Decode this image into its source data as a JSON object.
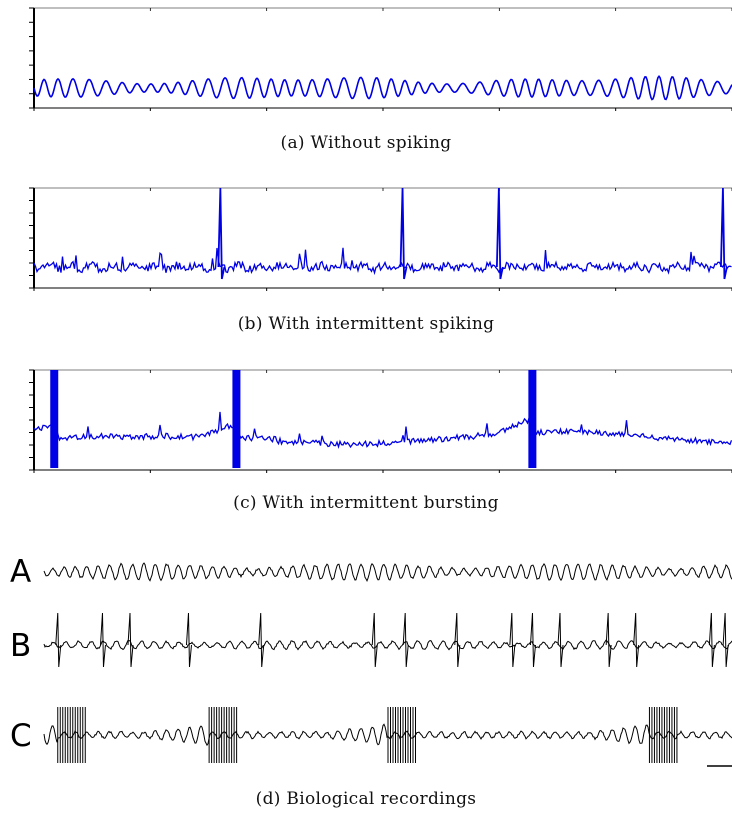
{
  "figure": {
    "captions": {
      "a": "(a) Without spiking",
      "b": "(b) With intermittent spiking",
      "c": "(c) With intermittent bursting",
      "d": "(d) Biological recordings"
    },
    "trace_labels": {
      "A": "A",
      "B": "B",
      "C": "C"
    },
    "colors": {
      "simulated_trace": "#0000e6",
      "biological_trace": "#000000",
      "axis": "#000000"
    }
  },
  "chart_data": [
    {
      "type": "line",
      "panel": "a",
      "title": "",
      "xlabel": "",
      "ylabel": "",
      "series": [
        {
          "color": "#0000e6",
          "pattern": "subthreshold oscillations",
          "amplitude_relative": 0.14
        }
      ],
      "spike_positions_relative": [],
      "burst_positions_relative": []
    },
    {
      "type": "line",
      "panel": "b",
      "title": "",
      "xlabel": "",
      "ylabel": "",
      "series": [
        {
          "color": "#0000e6",
          "pattern": "noisy baseline with isolated spikes"
        }
      ],
      "spike_positions_relative": [
        0.267,
        0.528,
        0.666,
        0.987
      ],
      "burst_positions_relative": []
    },
    {
      "type": "line",
      "panel": "c",
      "title": "",
      "xlabel": "",
      "ylabel": "",
      "series": [
        {
          "color": "#0000e6",
          "pattern": "noisy baseline with high-frequency bursts"
        }
      ],
      "spike_positions_relative": [],
      "burst_positions_relative": [
        0.029,
        0.29,
        0.714
      ]
    },
    {
      "type": "line",
      "panel": "d",
      "title": "",
      "series": [
        {
          "name": "A",
          "color": "#000000",
          "pattern": "subthreshold oscillations"
        },
        {
          "name": "B",
          "color": "#000000",
          "pattern": "oscillations with isolated spikes"
        },
        {
          "name": "C",
          "color": "#000000",
          "pattern": "oscillations with bursts"
        }
      ],
      "spike_positions_relative_B": [
        0.02,
        0.085,
        0.125,
        0.21,
        0.315,
        0.48,
        0.525,
        0.6,
        0.68,
        0.71,
        0.75,
        0.82,
        0.86,
        0.97,
        0.99
      ],
      "burst_positions_relative_C": [
        0.02,
        0.24,
        0.5,
        0.88
      ]
    }
  ]
}
